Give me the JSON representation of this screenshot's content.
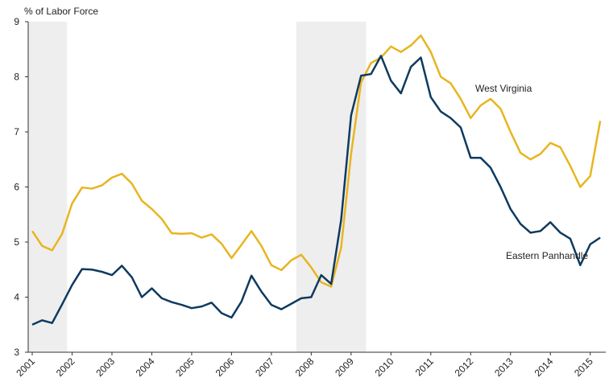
{
  "chart_data": {
    "type": "line",
    "ylabel": "% of Labor Force",
    "categories": [
      "2001",
      null,
      null,
      null,
      "2002",
      null,
      null,
      null,
      "2003",
      null,
      null,
      null,
      "2004",
      null,
      null,
      null,
      "2005",
      null,
      null,
      null,
      "2006",
      null,
      null,
      null,
      "2007",
      null,
      null,
      null,
      "2008",
      null,
      null,
      null,
      "2009",
      null,
      null,
      null,
      "2010",
      null,
      null,
      null,
      "2011",
      null,
      null,
      null,
      "2012",
      null,
      null,
      null,
      "2013",
      null,
      null,
      null,
      "2014",
      null,
      null,
      null,
      "2015",
      null
    ],
    "series": [
      {
        "name": "West Virginia",
        "color": "#e8b520",
        "values": [
          5.2,
          4.93,
          4.85,
          5.15,
          5.7,
          5.99,
          5.97,
          6.03,
          6.17,
          6.24,
          6.06,
          5.75,
          5.6,
          5.42,
          5.16,
          5.15,
          5.16,
          5.08,
          5.14,
          4.97,
          4.71,
          4.95,
          5.2,
          4.93,
          4.58,
          4.49,
          4.67,
          4.77,
          4.54,
          4.27,
          4.19,
          4.9,
          6.6,
          7.9,
          8.25,
          8.35,
          8.55,
          8.45,
          8.57,
          8.75,
          8.45,
          8.0,
          7.88,
          7.6,
          7.25,
          7.48,
          7.6,
          7.42,
          7.0,
          6.62,
          6.5,
          6.6,
          6.8,
          6.72,
          6.38,
          6.0,
          6.2,
          7.2
        ]
      },
      {
        "name": "Eastern Panhandle",
        "color": "#0e3a5f",
        "values": [
          3.5,
          3.58,
          3.53,
          3.87,
          4.22,
          4.51,
          4.5,
          4.46,
          4.4,
          4.57,
          4.36,
          4.0,
          4.16,
          3.98,
          3.91,
          3.86,
          3.8,
          3.83,
          3.9,
          3.71,
          3.63,
          3.92,
          4.39,
          4.1,
          3.86,
          3.78,
          3.88,
          3.98,
          4.0,
          4.4,
          4.24,
          5.4,
          7.3,
          8.02,
          8.05,
          8.38,
          7.93,
          7.7,
          8.18,
          8.35,
          7.63,
          7.37,
          7.25,
          7.08,
          6.53,
          6.53,
          6.35,
          6.0,
          5.6,
          5.33,
          5.17,
          5.2,
          5.36,
          5.17,
          5.06,
          4.58,
          4.96,
          5.08
        ]
      }
    ],
    "shaded": [
      [
        0,
        3
      ],
      [
        27,
        33
      ]
    ],
    "ylim": [
      3,
      9
    ],
    "yticks": [
      3,
      4,
      5,
      6,
      7,
      8,
      9
    ],
    "grid": false
  }
}
